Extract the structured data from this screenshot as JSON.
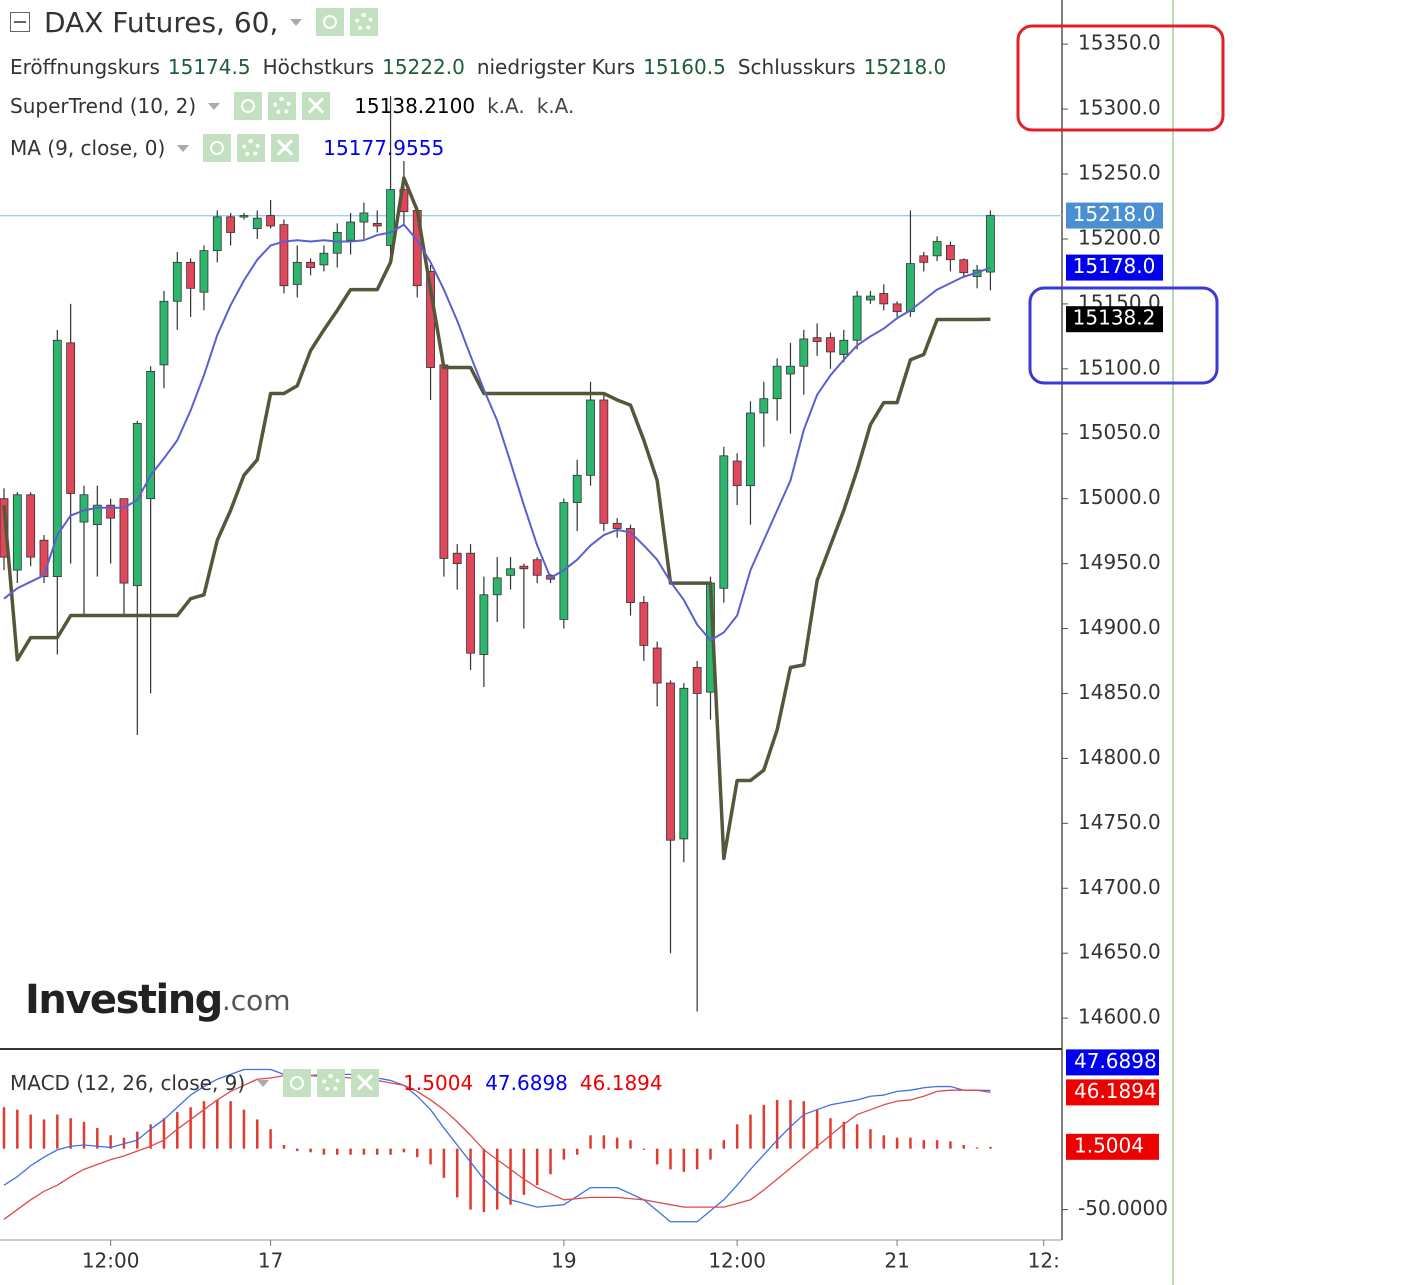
{
  "chart_data": [
    {
      "type": "candlestick",
      "title": "DAX Futures, 60,",
      "readout": [
        {
          "name": "Eröffnungskurs",
          "label": "15174.5"
        },
        {
          "name": "Höchstkurs",
          "label": "15222.0"
        },
        {
          "name": "niedrigster Kurs",
          "label": "15160.5"
        },
        {
          "name": "Schlusskurs",
          "label": "15218.0"
        }
      ],
      "categories": [
        null,
        null,
        null,
        null,
        null,
        null,
        null,
        null,
        "12:00",
        null,
        null,
        null,
        null,
        null,
        null,
        null,
        null,
        null,
        null,
        null,
        "17",
        null,
        null,
        null,
        null,
        null,
        null,
        null,
        null,
        null,
        null,
        null,
        null,
        null,
        null,
        null,
        null,
        null,
        null,
        null,
        null,
        null,
        "19",
        null,
        null,
        null,
        null,
        null,
        null,
        null,
        null,
        null,
        null,
        null,
        null,
        "12:00",
        null,
        null,
        null,
        null,
        null,
        null,
        null,
        null,
        null,
        null,
        null,
        "21",
        null,
        null,
        null,
        null,
        null,
        null,
        null,
        null,
        null,
        null,
        "12:",
        null
      ],
      "open": [
        15000,
        14945,
        15003,
        14968,
        14940,
        15120,
        14982,
        14980,
        14995,
        15000,
        14933,
        15000,
        15103,
        15152,
        15182,
        15159,
        15191,
        15217,
        15217,
        15208,
        15218,
        15211,
        15165,
        15182,
        15180,
        15189,
        15199,
        15213,
        15212,
        15195,
        15238,
        15222,
        15175,
        15103,
        14958,
        14958,
        14880,
        14926,
        14941,
        14948,
        14953,
        14941,
        14907,
        14997,
        15018,
        15076,
        14981,
        14977,
        14920,
        14885,
        14858,
        14738,
        14870,
        14851,
        14931,
        15029,
        15010,
        15066,
        15077,
        15096,
        15102,
        15124,
        15124,
        15111,
        15122,
        15153,
        15158,
        15150,
        15144,
        15187,
        15187,
        15195,
        15184,
        15171,
        15174.5,
        null,
        null,
        null,
        null,
        null
      ],
      "high": [
        15008,
        15005,
        15005,
        14972,
        15130,
        15150,
        15010,
        15010,
        15000,
        15000,
        15060,
        15102,
        15160,
        15190,
        15185,
        15195,
        15222,
        15220,
        15220,
        15222,
        15230,
        15215,
        15195,
        15185,
        15195,
        15212,
        15220,
        15228,
        15222,
        15310,
        15260,
        15225,
        15180,
        15105,
        14965,
        14965,
        14940,
        14955,
        14955,
        14950,
        14955,
        14942,
        15000,
        15030,
        15090,
        15080,
        14985,
        14980,
        14925,
        14890,
        14860,
        14858,
        14875,
        14940,
        15040,
        15035,
        15075,
        15090,
        15108,
        15120,
        15130,
        15135,
        15128,
        15130,
        15160,
        15160,
        15165,
        15152,
        15222,
        15190,
        15202,
        15198,
        15185,
        15180,
        15222,
        null,
        null,
        null,
        null,
        null
      ],
      "low": [
        14945,
        14935,
        14948,
        14935,
        14880,
        14950,
        14910,
        14940,
        14950,
        14910,
        14818,
        14850,
        15085,
        15130,
        15140,
        15145,
        15182,
        15195,
        15215,
        15200,
        15208,
        15158,
        15155,
        15172,
        15175,
        15178,
        15188,
        15200,
        15205,
        15183,
        15210,
        15155,
        15076,
        14940,
        14930,
        14868,
        14855,
        14905,
        14930,
        14900,
        14935,
        14935,
        14900,
        14975,
        15010,
        14975,
        14970,
        14910,
        14875,
        14840,
        14650,
        14720,
        14605,
        14830,
        14920,
        14995,
        14980,
        15040,
        15060,
        15050,
        15080,
        15110,
        15100,
        15105,
        15115,
        15150,
        15145,
        15140,
        15140,
        15175,
        15183,
        15175,
        15170,
        15162,
        15160.5,
        null,
        null,
        null,
        null,
        null
      ],
      "close": [
        14955,
        15003,
        14955,
        14940,
        15122,
        15004,
        15003,
        14995,
        14985,
        14935,
        15058,
        15098,
        15152,
        15182,
        15162,
        15191,
        15217,
        15205,
        15218,
        15216,
        15210,
        15164,
        15182,
        15178,
        15189,
        15205,
        15213,
        15220,
        15210,
        15238,
        15221,
        15164,
        15101,
        14954,
        14950,
        14881,
        14926,
        14939,
        14946,
        14946,
        14941,
        14938,
        14997,
        15018,
        15076,
        14981,
        14977,
        14920,
        14887,
        14858,
        14737,
        14854,
        14850,
        14935,
        15033,
        15010,
        15066,
        15077,
        15102,
        15102,
        15123,
        15121,
        15113,
        15122,
        15156,
        15156,
        15150,
        15144,
        15181,
        15182,
        15198,
        15184,
        15174,
        15176,
        15218,
        null,
        null,
        null,
        null,
        null
      ],
      "up_color": "#2cb56d",
      "down_color": "#e0475b",
      "close_badge": "15218.0",
      "close_badge_color": "#4a8fd2",
      "price_line_color": "#9fd0e2",
      "ylim": [
        14577,
        15384
      ],
      "yticks": [
        {
          "value": 15350,
          "label": "15350.0"
        },
        {
          "value": 15300,
          "label": "15300.0"
        },
        {
          "value": 15250,
          "label": "15250.0"
        },
        {
          "value": 15200,
          "label": "15200.0"
        },
        {
          "value": 15150,
          "label": "15150.0"
        },
        {
          "value": 15100,
          "label": "15100.0"
        },
        {
          "value": 15050,
          "label": "15050.0"
        },
        {
          "value": 15000,
          "label": "15000.0"
        },
        {
          "value": 14950,
          "label": "14950.0"
        },
        {
          "value": 14900,
          "label": "14900.0"
        },
        {
          "value": 14850,
          "label": "14850.0"
        },
        {
          "value": 14800,
          "label": "14800.0"
        },
        {
          "value": 14750,
          "label": "14750.0"
        },
        {
          "value": 14700,
          "label": "14700.0"
        },
        {
          "value": 14650,
          "label": "14650.0"
        },
        {
          "value": 14600,
          "label": "14600.0"
        }
      ],
      "series": [
        {
          "name": "SuperTrend (10, 2)",
          "color": "#56563b",
          "width": 3.5,
          "values": [
            14995,
            14876,
            14893,
            14893,
            14893,
            14910,
            14910,
            14910,
            14910,
            14910,
            14910,
            14910,
            14910,
            14910,
            14923,
            14926,
            14968,
            14991,
            15018,
            15030,
            15081,
            15081,
            15087,
            15114,
            15130,
            15145,
            15161,
            15161,
            15161,
            15182,
            15247,
            15222,
            15161,
            15101,
            15101,
            15101,
            15081,
            15081,
            15081,
            15081,
            15081,
            15081,
            15081,
            15081,
            15081,
            15081,
            15076,
            15072,
            15045,
            15014,
            14935,
            14935,
            14935,
            14935,
            14723,
            14783,
            14783,
            14791,
            14822,
            14870,
            14872,
            14937,
            14964,
            14991,
            15022,
            15057,
            15074,
            15074,
            15107,
            15111,
            15138,
            15138,
            15138,
            15138,
            15138.21,
            null,
            null,
            null,
            null,
            null
          ],
          "readout": [
            "15138.2100",
            "k.A.",
            "k.A."
          ],
          "badge": "15138.2",
          "badge_color": "#000000"
        },
        {
          "name": "MA (9, close, 0)",
          "color": "#5b60d0",
          "width": 2,
          "values": [
            14923,
            14931,
            14936,
            14941,
            14972,
            14987,
            14991,
            14993,
            14993,
            14993,
            14999,
            15018,
            15031,
            15045,
            15068,
            15095,
            15126,
            15149,
            15168,
            15184,
            15195,
            15198,
            15199,
            15198,
            15199,
            15198,
            15198,
            15199,
            15203,
            15205,
            15211,
            15199,
            15182,
            15161,
            15137,
            15110,
            15084,
            15060,
            15028,
            14995,
            14964,
            14939,
            14945,
            14953,
            14964,
            14972,
            14976,
            14974,
            14964,
            14953,
            14936,
            14922,
            14903,
            14891,
            14897,
            14910,
            14945,
            14968,
            14991,
            15014,
            15053,
            15080,
            15095,
            15107,
            15118,
            15125,
            15131,
            15139,
            15145,
            15153,
            15161,
            15166,
            15171,
            15174,
            15177.9555,
            null,
            null,
            null,
            null,
            null
          ],
          "badge": "15178.0",
          "badge_color": "#0000ee"
        }
      ],
      "watermark": [
        "Investing",
        ".com"
      ]
    },
    {
      "type": "macd",
      "title": "MACD (12, 26, close, 9)",
      "ylim": [
        -75,
        81
      ],
      "yticks": [
        {
          "value": -50,
          "label": "-50.0000"
        }
      ],
      "series": [
        {
          "kind": "histogram",
          "color": "#e23a2e",
          "badge_color": "#ee0000",
          "values": [
            34,
            32,
            28,
            24,
            28,
            25,
            22,
            17,
            11,
            9,
            14,
            20,
            25,
            30,
            34,
            39,
            40,
            39,
            32,
            24,
            16,
            3,
            -2,
            -3,
            -5,
            -5,
            -5,
            -5,
            -5,
            -5,
            -3,
            -7,
            -13,
            -24,
            -40,
            -50,
            -52,
            -50,
            -46,
            -38,
            -30,
            -21,
            -9,
            -5,
            11,
            11,
            9,
            7,
            -1,
            -13,
            -17,
            -19,
            -17,
            -9,
            7,
            20,
            28,
            36,
            40,
            40,
            39,
            32,
            25,
            22,
            20,
            16,
            11,
            9,
            9,
            7,
            7,
            6,
            3,
            1,
            1.5004,
            null,
            null,
            null,
            null,
            null
          ]
        },
        {
          "kind": "line",
          "color": "#3d72e3",
          "badge_color": "#0000ee",
          "values": [
            -30,
            -23,
            -14,
            -7,
            -1,
            2,
            3,
            2,
            1,
            4,
            7,
            16,
            24,
            34,
            44,
            51,
            57,
            61,
            65,
            65,
            65,
            61,
            58,
            60,
            61,
            61,
            61,
            60,
            58,
            56,
            52,
            43,
            32,
            17,
            3,
            -11,
            -25,
            -35,
            -42,
            -45,
            -48,
            -47,
            -46,
            -39,
            -32,
            -32,
            -32,
            -37,
            -42,
            -51,
            -60,
            -60,
            -60,
            -51,
            -42,
            -30,
            -17,
            -5,
            7,
            18,
            28,
            32,
            36,
            38,
            40,
            43,
            44,
            47,
            48,
            50,
            51,
            51,
            48,
            48,
            47.6898,
            null,
            null,
            null,
            null,
            null
          ]
        },
        {
          "kind": "line",
          "color": "#e04a4a",
          "badge_color": "#ee0000",
          "values": [
            -58,
            -50,
            -42,
            -35,
            -30,
            -23,
            -17,
            -13,
            -9,
            -6,
            -2,
            2,
            7,
            16,
            24,
            32,
            40,
            47,
            52,
            57,
            58,
            60,
            61,
            60,
            59,
            59,
            58,
            57,
            56,
            54,
            52,
            47,
            40,
            32,
            22,
            11,
            -1,
            -9,
            -17,
            -25,
            -32,
            -37,
            -42,
            -41,
            -40,
            -40,
            -40,
            -41,
            -42,
            -44,
            -46,
            -48,
            -48,
            -48,
            -48,
            -45,
            -42,
            -34,
            -25,
            -16,
            -7,
            2,
            11,
            20,
            28,
            32,
            36,
            39,
            40,
            43,
            47,
            48,
            48,
            48,
            46.1894,
            null,
            null,
            null,
            null,
            null
          ]
        }
      ]
    }
  ]
}
